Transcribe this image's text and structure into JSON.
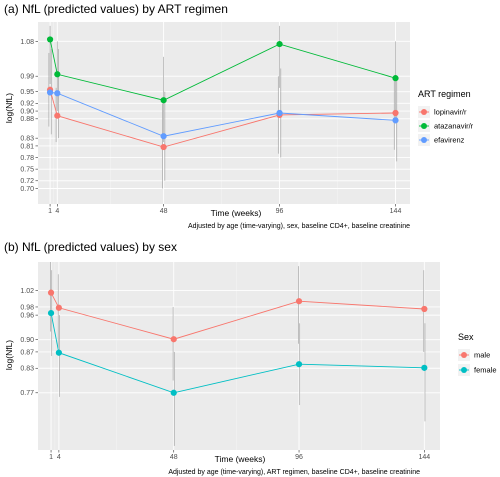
{
  "chart_data": [
    {
      "type": "line",
      "title": "(a) NfL (predicted values) by ART regimen",
      "xlabel": "Time (weeks)",
      "ylabel": "log(NfL)",
      "caption": "Adjusted by age (time-varying), sex, baseline CD4+, baseline creatinine",
      "x_ticks": [
        "1",
        "4",
        "48",
        "96",
        "144"
      ],
      "y_ticks": [
        "0.70",
        "0.72",
        "0.75",
        "0.78",
        "0.81",
        "0.83",
        "0.88",
        "0.90",
        "0.92",
        "0.95",
        "0.99",
        "1.08"
      ],
      "xlim": [
        -4,
        150
      ],
      "ylim": [
        0.66,
        1.13
      ],
      "grid": true,
      "legend": {
        "title": "ART regimen",
        "position": "right"
      },
      "x": [
        1,
        4,
        48,
        96,
        144
      ],
      "series": [
        {
          "name": "lopinavir/r",
          "color": "#F8766D",
          "values": [
            0.955,
            0.888,
            0.807,
            0.89,
            0.895
          ],
          "ci_low": [
            0.86,
            0.82,
            0.7,
            0.79,
            0.8
          ],
          "ci_high": [
            1.05,
            0.96,
            0.92,
            0.99,
            0.99
          ]
        },
        {
          "name": "atazanavir/r",
          "color": "#00BA38",
          "values": [
            1.085,
            0.995,
            0.928,
            1.073,
            0.985
          ],
          "ci_low": [
            0.97,
            0.9,
            0.82,
            0.96,
            0.88
          ],
          "ci_high": [
            1.12,
            1.08,
            1.04,
            1.12,
            1.08
          ]
        },
        {
          "name": "efavirenz",
          "color": "#619CFF",
          "values": [
            0.948,
            0.946,
            0.835,
            0.895,
            0.876
          ],
          "ci_low": [
            0.84,
            0.83,
            0.72,
            0.78,
            0.77
          ],
          "ci_high": [
            1.06,
            1.06,
            0.95,
            1.01,
            0.98
          ]
        }
      ]
    },
    {
      "type": "line",
      "title": "(b) NfL (predicted values) by sex",
      "xlabel": "Time (weeks)",
      "ylabel": "log(NfL)",
      "caption": "Adjusted by age (time-varying), ART regimen, baseline CD4+, baseline creatinine",
      "x_ticks": [
        "1",
        "4",
        "48",
        "96",
        "144"
      ],
      "y_ticks": [
        "0.77",
        "0.83",
        "0.87",
        "0.90",
        "0.96",
        "0.98",
        "1.02"
      ],
      "xlim": [
        -4,
        150
      ],
      "ylim": [
        0.63,
        1.09
      ],
      "grid": true,
      "legend": {
        "title": "Sex",
        "position": "right"
      },
      "x": [
        1,
        4,
        48,
        96,
        144
      ],
      "series": [
        {
          "name": "male",
          "color": "#F8766D",
          "values": [
            1.015,
            0.978,
            0.901,
            0.994,
            0.975
          ],
          "ci_low": [
            0.92,
            0.88,
            0.8,
            0.89,
            0.87
          ],
          "ci_high": [
            1.09,
            1.06,
            0.98,
            1.08,
            1.07
          ]
        },
        {
          "name": "female",
          "color": "#00BFC4",
          "values": [
            0.965,
            0.868,
            0.77,
            0.84,
            0.831
          ],
          "ci_low": [
            0.86,
            0.76,
            0.64,
            0.74,
            0.7
          ],
          "ci_high": [
            1.07,
            0.96,
            0.87,
            0.94,
            0.94
          ]
        }
      ]
    }
  ]
}
